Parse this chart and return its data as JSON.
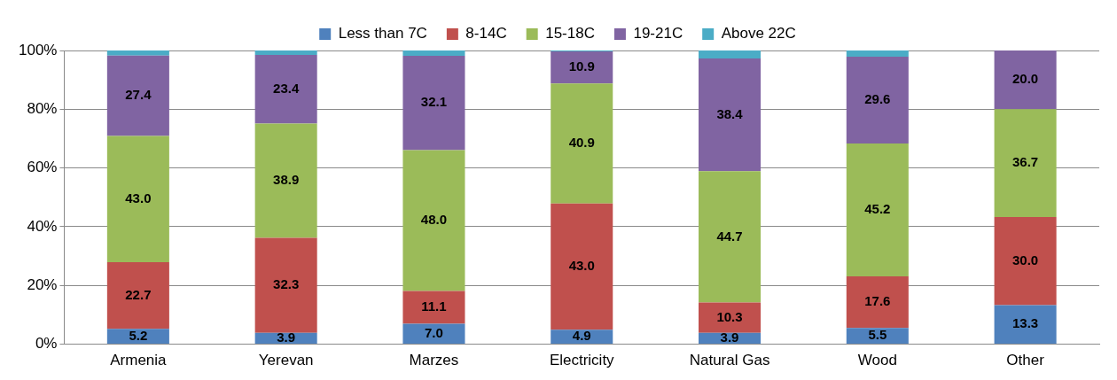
{
  "chart_data": {
    "type": "bar",
    "stacked": true,
    "categories": [
      "Armenia",
      "Yerevan",
      "Marzes",
      "Electricity",
      "Natural Gas",
      "Wood",
      "Other"
    ],
    "series": [
      {
        "name": "Less than 7C",
        "color": "#4f81bd",
        "values": [
          5.2,
          3.9,
          7.0,
          4.9,
          3.9,
          5.5,
          13.3
        ],
        "value_labels": [
          "5.2",
          "3.9",
          "7.0",
          "4.9",
          "3.9",
          "5.5",
          "13.3"
        ]
      },
      {
        "name": "8-14C",
        "color": "#c0504d",
        "values": [
          22.7,
          32.3,
          11.1,
          43.0,
          10.3,
          17.6,
          30.0
        ],
        "value_labels": [
          "22.7",
          "32.3",
          "11.1",
          "43.0",
          "10.3",
          "17.6",
          "30.0"
        ]
      },
      {
        "name": "15-18C",
        "color": "#9bbb59",
        "values": [
          43.0,
          38.9,
          48.0,
          40.9,
          44.7,
          45.2,
          36.7
        ],
        "value_labels": [
          "43.0",
          "38.9",
          "48.0",
          "40.9",
          "44.7",
          "45.2",
          "36.7"
        ]
      },
      {
        "name": "19-21C",
        "color": "#8064a2",
        "values": [
          27.4,
          23.4,
          32.1,
          10.9,
          38.4,
          29.6,
          20.0
        ],
        "value_labels": [
          "27.4",
          "23.4",
          "32.1",
          "10.9",
          "38.4",
          "29.6",
          "20.0"
        ]
      },
      {
        "name": "Above 22C",
        "color": "#4bacc6",
        "values": [
          1.7,
          1.5,
          1.8,
          0.3,
          2.7,
          2.1,
          0
        ]
      }
    ],
    "ylim": [
      0,
      100
    ],
    "yticks": [
      {
        "value": 0,
        "label": "0%"
      },
      {
        "value": 20,
        "label": "20%"
      },
      {
        "value": 40,
        "label": "40%"
      },
      {
        "value": 60,
        "label": "60%"
      },
      {
        "value": 80,
        "label": "80%"
      },
      {
        "value": 100,
        "label": "100%"
      }
    ],
    "grid": "y",
    "legend": "top"
  }
}
